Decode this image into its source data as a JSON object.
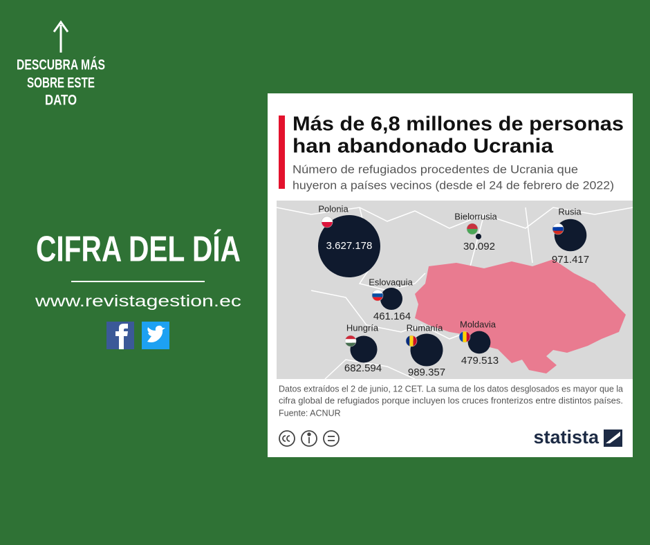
{
  "sidebar": {
    "cta": [
      "DESCUBRA MÁS",
      "SOBRE ESTE",
      "DATO"
    ],
    "headline": "CIFRA DEL DÍA",
    "url": "www.revistagestion.ec"
  },
  "chart_data": {
    "type": "bubble-map",
    "title": [
      "Más de 6,8 millones de personas",
      "han abandonado Ucrania"
    ],
    "subtitle": [
      "Número de refugiados procedentes de Ucrania que",
      "huyeron a países vecinos (desde el 24 de febrero de 2022)"
    ],
    "categories": [
      "Polonia",
      "Bielorrusia",
      "Rusia",
      "Eslovaquia",
      "Hungría",
      "Rumanía",
      "Moldavia"
    ],
    "values": [
      3627178,
      30092,
      971417,
      461164,
      682594,
      989357,
      479513
    ],
    "value_labels": [
      "3.627.178",
      "30.092",
      "971.417",
      "461.164",
      "682.594",
      "989.357",
      "479.513"
    ],
    "color": "#0f1a2e",
    "highlight_color": "#e97b90",
    "notes": [
      "Datos extraídos el 2 de junio, 12 CET. La suma de los datos desglosados es mayor que la",
      "cifra global de refugiados porque incluyen los cruces fronterizos entre distintos países."
    ],
    "source": "Fuente: ACNUR",
    "brand": "statista"
  }
}
